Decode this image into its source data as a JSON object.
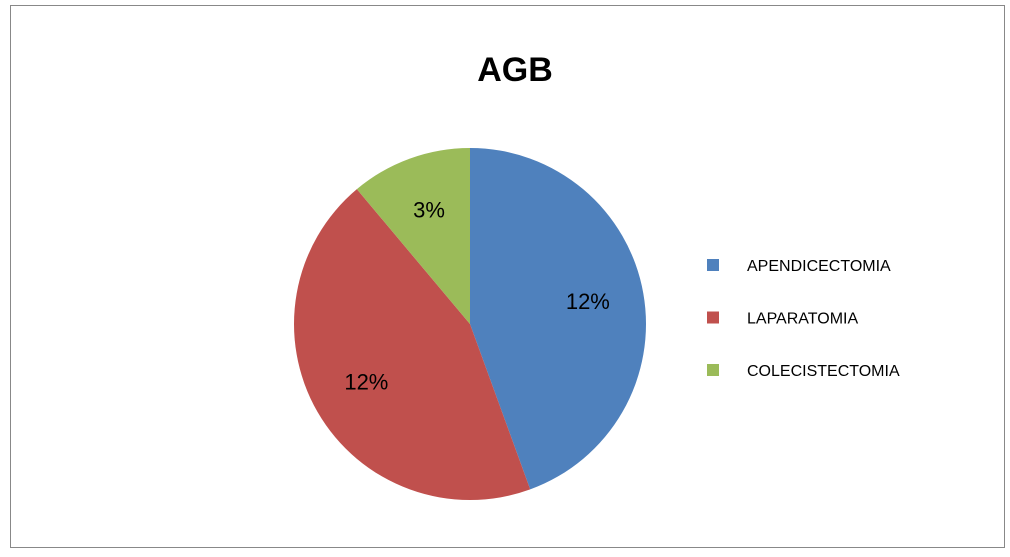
{
  "chart_data": {
    "type": "pie",
    "title": "AGB",
    "categories": [
      "APENDICECTOMIA",
      "LAPARATOMIA",
      "COLECISTECTOMIA"
    ],
    "values": [
      12,
      12,
      3
    ],
    "value_labels": [
      "12%",
      "12%",
      "3%"
    ],
    "colors": [
      "#4f81bd",
      "#c0504d",
      "#9bbb59"
    ],
    "legend": "right"
  }
}
